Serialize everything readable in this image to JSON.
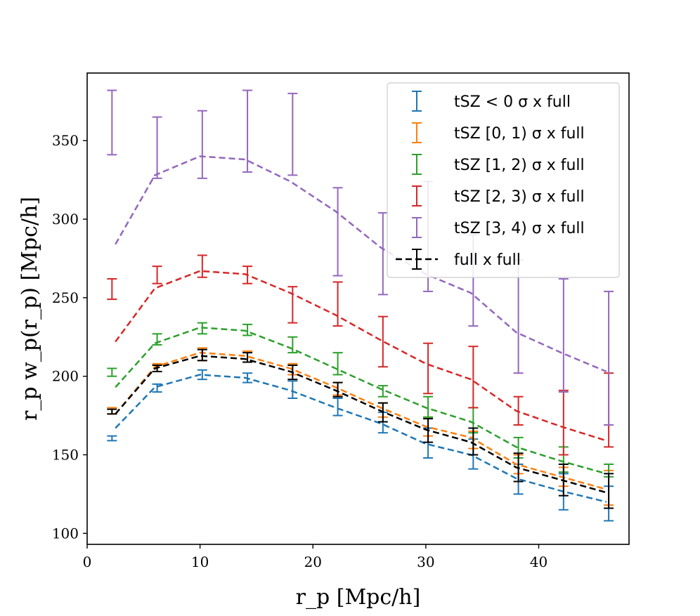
{
  "chart_data": {
    "type": "line",
    "xlabel": "r_p [Mpc/h]",
    "ylabel": "r_p w_p(r_p) [Mpc/h]",
    "xlim": [
      0,
      48
    ],
    "ylim": [
      93,
      393
    ],
    "xticks": [
      0,
      10,
      20,
      30,
      40
    ],
    "yticks": [
      100,
      150,
      200,
      250,
      300,
      350
    ],
    "grid": false,
    "legend_position": "top-right",
    "x_model": [
      2.5,
      6.0,
      10.0,
      14.0,
      18.0,
      22.0,
      26.0,
      30.0,
      34.0,
      38.0,
      42.0,
      46.0
    ],
    "x_data": [
      2.2,
      6.2,
      10.2,
      14.2,
      18.2,
      22.2,
      26.2,
      30.2,
      34.2,
      38.2,
      42.2,
      46.2
    ],
    "series": [
      {
        "name": "tSZ < 0 σ x full",
        "color": "#1f77b4",
        "model": [
          167,
          193,
          201,
          199,
          191,
          180,
          170,
          157,
          150,
          135,
          127,
          120
        ],
        "err_low": [
          159,
          190,
          198,
          196,
          186,
          175,
          164,
          148,
          141,
          125,
          115,
          108
        ],
        "err_high": [
          162,
          195,
          204,
          202,
          197,
          186,
          177,
          167,
          160,
          144,
          138,
          130
        ]
      },
      {
        "name": "tSZ [0, 1) σ x full",
        "color": "#ff7f0e",
        "model": [
          176,
          206,
          215,
          213,
          205,
          193,
          180,
          168,
          161,
          144,
          136,
          128
        ],
        "err_low": [
          176,
          203,
          210,
          209,
          201,
          188,
          174,
          162,
          154,
          138,
          130,
          118
        ],
        "err_high": [
          180,
          208,
          218,
          216,
          208,
          196,
          183,
          174,
          165,
          150,
          142,
          140
        ]
      },
      {
        "name": "tSZ [1, 2) σ x full",
        "color": "#2ca02c",
        "model": [
          193,
          221,
          231,
          229,
          218,
          205,
          192,
          180,
          171,
          155,
          146,
          138
        ],
        "err_low": [
          200,
          220,
          227,
          226,
          215,
          201,
          187,
          174,
          164,
          148,
          139,
          136
        ],
        "err_high": [
          205,
          227,
          234,
          233,
          225,
          215,
          194,
          187,
          180,
          161,
          155,
          144
        ]
      },
      {
        "name": "tSZ [2, 3) σ x full",
        "color": "#d62728",
        "model": [
          222,
          256,
          267,
          265,
          253,
          239,
          223,
          208,
          198,
          178,
          168,
          159
        ],
        "err_low": [
          249,
          259,
          263,
          259,
          234,
          232,
          206,
          189,
          180,
          169,
          150,
          155
        ],
        "err_high": [
          262,
          270,
          277,
          270,
          257,
          260,
          238,
          221,
          219,
          187,
          191,
          202
        ]
      },
      {
        "name": "tSZ [3, 4) σ x full",
        "color": "#9467bd",
        "model": [
          284,
          328,
          340,
          338,
          324,
          305,
          282,
          265,
          253,
          228,
          215,
          203
        ],
        "err_low": [
          341,
          326,
          326,
          330,
          328,
          264,
          252,
          254,
          232,
          202,
          190,
          169
        ],
        "err_high": [
          382,
          365,
          369,
          382,
          380,
          320,
          304,
          324,
          290,
          274,
          262,
          254
        ]
      },
      {
        "name": "full x full",
        "color": "#000000",
        "model": [
          176,
          205,
          213,
          211,
          203,
          191,
          178,
          166,
          158,
          142,
          134,
          126
        ],
        "err_low": [
          176,
          203,
          210,
          209,
          198,
          187,
          171,
          158,
          150,
          133,
          124,
          116
        ],
        "err_high": [
          179,
          207,
          217,
          215,
          207,
          196,
          183,
          173,
          167,
          151,
          144,
          138
        ]
      }
    ]
  }
}
